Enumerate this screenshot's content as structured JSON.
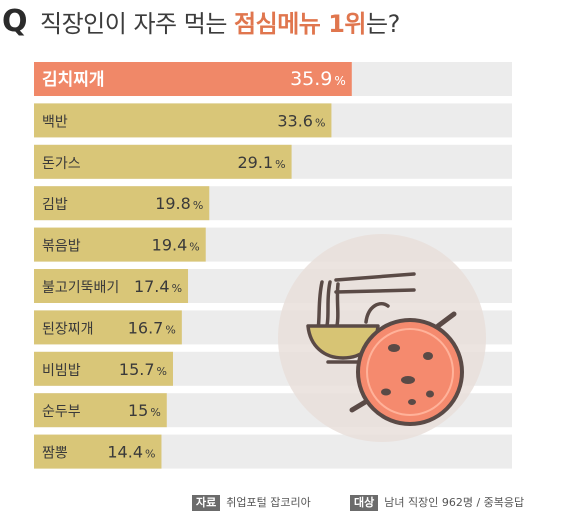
{
  "header": {
    "q_mark": "Q",
    "title_prefix": "직장인이 자주 먹는 ",
    "title_highlight": "점심메뉴 1위",
    "title_suffix": "는?"
  },
  "chart_data": {
    "type": "bar",
    "orientation": "horizontal",
    "categories": [
      "김치찌개",
      "백반",
      "돈가스",
      "김밥",
      "볶음밥",
      "불고기뚝배기",
      "된장찌개",
      "비빔밥",
      "순두부",
      "짬뽕"
    ],
    "values": [
      35.9,
      33.6,
      29.1,
      19.8,
      19.4,
      17.4,
      16.7,
      15.7,
      15,
      14.4
    ],
    "value_labels": [
      "35.9",
      "33.6",
      "29.1",
      "19.8",
      "19.4",
      "17.4",
      "16.7",
      "15.7",
      "15",
      "14.4"
    ],
    "unit": "%",
    "title": "직장인이 자주 먹는 점심메뉴 1위는?",
    "xlim": [
      0,
      54
    ],
    "grid": false,
    "legend": "none",
    "colors": {
      "highlight_bar": "#f08868",
      "bar": "#d9c678",
      "track": "#ececec",
      "highlight_text": "#ffffff",
      "text": "#3a3a3a",
      "illustration_circle": "#e9dfdb",
      "pot": "#f58a6e",
      "bowl": "#d7c474",
      "line_art": "#5a4a46"
    }
  },
  "footer": {
    "source_tag": "자료",
    "source_text": "취업포털 잡코리아",
    "target_tag": "대상",
    "target_text": "남녀 직장인 962명 / 중복응답"
  },
  "illustration": {
    "icon": "bowl-noodles-and-stew-pot-icon"
  }
}
